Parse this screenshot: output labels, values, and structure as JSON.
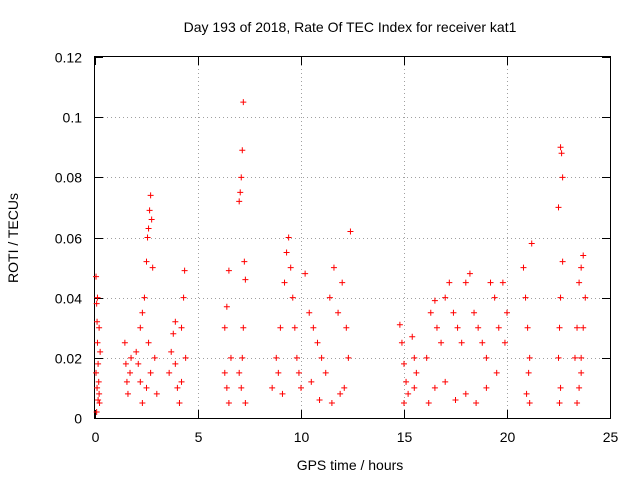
{
  "chart_data": {
    "type": "scatter",
    "title": "Day 193 of 2018, Rate Of TEC Index for receiver kat1",
    "xlabel": "GPS time / hours",
    "ylabel": "ROTI / TECUs",
    "xlim": [
      0,
      25
    ],
    "ylim": [
      0,
      0.12
    ],
    "xticks": [
      0,
      5,
      10,
      15,
      20,
      25
    ],
    "xtick_labels": [
      "0",
      "5",
      "10",
      "15",
      "20",
      "25"
    ],
    "yticks": [
      0,
      0.02,
      0.04,
      0.06,
      0.08,
      0.1,
      0.12
    ],
    "ytick_labels": [
      "0",
      "0.02",
      "0.04",
      "0.06",
      "0.08",
      "0.1",
      "0.12"
    ],
    "grid": true,
    "marker": "+",
    "color": "#ff0000",
    "series": [
      {
        "name": "ROTI",
        "points": [
          [
            0.05,
            0.047
          ],
          [
            0.08,
            0.038
          ],
          [
            0.1,
            0.032
          ],
          [
            0.12,
            0.025
          ],
          [
            0.15,
            0.018
          ],
          [
            0.18,
            0.012
          ],
          [
            0.2,
            0.008
          ],
          [
            0.22,
            0.005
          ],
          [
            0.05,
            0.015
          ],
          [
            0.1,
            0.01
          ],
          [
            0.15,
            0.006
          ],
          [
            0.2,
            0.03
          ],
          [
            0.25,
            0.022
          ],
          [
            0.12,
            0.04
          ],
          [
            0.08,
            0.002
          ],
          [
            1.45,
            0.025
          ],
          [
            1.5,
            0.018
          ],
          [
            1.55,
            0.012
          ],
          [
            1.6,
            0.008
          ],
          [
            1.7,
            0.015
          ],
          [
            1.75,
            0.02
          ],
          [
            2.0,
            0.022
          ],
          [
            2.1,
            0.018
          ],
          [
            2.2,
            0.03
          ],
          [
            2.3,
            0.035
          ],
          [
            2.4,
            0.04
          ],
          [
            2.5,
            0.052
          ],
          [
            2.55,
            0.06
          ],
          [
            2.6,
            0.063
          ],
          [
            2.65,
            0.069
          ],
          [
            2.7,
            0.074
          ],
          [
            2.75,
            0.066
          ],
          [
            2.8,
            0.05
          ],
          [
            2.5,
            0.01
          ],
          [
            2.3,
            0.005
          ],
          [
            2.7,
            0.015
          ],
          [
            2.9,
            0.02
          ],
          [
            3.0,
            0.008
          ],
          [
            2.2,
            0.012
          ],
          [
            2.6,
            0.025
          ],
          [
            3.6,
            0.015
          ],
          [
            3.7,
            0.022
          ],
          [
            3.8,
            0.028
          ],
          [
            3.9,
            0.032
          ],
          [
            4.0,
            0.01
          ],
          [
            4.1,
            0.005
          ],
          [
            4.2,
            0.03
          ],
          [
            4.3,
            0.04
          ],
          [
            4.35,
            0.049
          ],
          [
            4.4,
            0.02
          ],
          [
            4.2,
            0.012
          ],
          [
            3.9,
            0.018
          ],
          [
            6.3,
            0.03
          ],
          [
            6.4,
            0.037
          ],
          [
            6.5,
            0.049
          ],
          [
            6.6,
            0.02
          ],
          [
            6.4,
            0.01
          ],
          [
            6.5,
            0.005
          ],
          [
            6.3,
            0.015
          ],
          [
            7.0,
            0.072
          ],
          [
            7.05,
            0.075
          ],
          [
            7.1,
            0.08
          ],
          [
            7.15,
            0.089
          ],
          [
            7.2,
            0.105
          ],
          [
            7.25,
            0.052
          ],
          [
            7.3,
            0.046
          ],
          [
            7.2,
            0.03
          ],
          [
            7.15,
            0.02
          ],
          [
            7.1,
            0.01
          ],
          [
            7.3,
            0.005
          ],
          [
            7.0,
            0.015
          ],
          [
            8.6,
            0.01
          ],
          [
            8.8,
            0.02
          ],
          [
            9.0,
            0.03
          ],
          [
            9.2,
            0.045
          ],
          [
            9.3,
            0.055
          ],
          [
            9.4,
            0.06
          ],
          [
            9.5,
            0.05
          ],
          [
            9.6,
            0.04
          ],
          [
            9.7,
            0.03
          ],
          [
            9.8,
            0.02
          ],
          [
            9.9,
            0.015
          ],
          [
            10.0,
            0.01
          ],
          [
            10.2,
            0.048
          ],
          [
            10.4,
            0.035
          ],
          [
            10.6,
            0.03
          ],
          [
            10.8,
            0.025
          ],
          [
            11.0,
            0.02
          ],
          [
            11.2,
            0.015
          ],
          [
            11.4,
            0.04
          ],
          [
            11.6,
            0.05
          ],
          [
            11.8,
            0.035
          ],
          [
            12.0,
            0.045
          ],
          [
            12.2,
            0.03
          ],
          [
            12.4,
            0.062
          ],
          [
            12.3,
            0.02
          ],
          [
            12.1,
            0.01
          ],
          [
            11.9,
            0.008
          ],
          [
            11.5,
            0.005
          ],
          [
            10.9,
            0.006
          ],
          [
            10.5,
            0.012
          ],
          [
            9.1,
            0.008
          ],
          [
            8.9,
            0.015
          ],
          [
            14.8,
            0.031
          ],
          [
            14.9,
            0.025
          ],
          [
            15.0,
            0.018
          ],
          [
            15.1,
            0.012
          ],
          [
            15.2,
            0.008
          ],
          [
            15.0,
            0.005
          ],
          [
            15.4,
            0.027
          ],
          [
            15.5,
            0.02
          ],
          [
            15.6,
            0.015
          ],
          [
            15.5,
            0.01
          ],
          [
            16.1,
            0.02
          ],
          [
            16.3,
            0.035
          ],
          [
            16.5,
            0.039
          ],
          [
            16.6,
            0.03
          ],
          [
            16.8,
            0.025
          ],
          [
            17.0,
            0.04
          ],
          [
            17.2,
            0.045
          ],
          [
            17.4,
            0.035
          ],
          [
            17.6,
            0.03
          ],
          [
            17.8,
            0.025
          ],
          [
            18.0,
            0.045
          ],
          [
            18.2,
            0.048
          ],
          [
            18.4,
            0.035
          ],
          [
            18.6,
            0.03
          ],
          [
            18.8,
            0.025
          ],
          [
            19.0,
            0.02
          ],
          [
            19.2,
            0.045
          ],
          [
            19.4,
            0.04
          ],
          [
            19.6,
            0.03
          ],
          [
            19.8,
            0.045
          ],
          [
            20.0,
            0.035
          ],
          [
            19.9,
            0.025
          ],
          [
            19.5,
            0.015
          ],
          [
            19.0,
            0.01
          ],
          [
            18.5,
            0.005
          ],
          [
            18.0,
            0.008
          ],
          [
            17.5,
            0.006
          ],
          [
            17.0,
            0.012
          ],
          [
            16.5,
            0.01
          ],
          [
            16.2,
            0.005
          ],
          [
            20.8,
            0.05
          ],
          [
            20.9,
            0.04
          ],
          [
            21.0,
            0.03
          ],
          [
            21.1,
            0.02
          ],
          [
            21.2,
            0.058
          ],
          [
            21.05,
            0.015
          ],
          [
            20.95,
            0.008
          ],
          [
            21.1,
            0.005
          ],
          [
            22.5,
            0.07
          ],
          [
            22.6,
            0.09
          ],
          [
            22.65,
            0.088
          ],
          [
            22.7,
            0.052
          ],
          [
            22.6,
            0.04
          ],
          [
            22.55,
            0.03
          ],
          [
            22.5,
            0.02
          ],
          [
            22.6,
            0.01
          ],
          [
            22.55,
            0.005
          ],
          [
            22.7,
            0.08
          ],
          [
            23.3,
            0.02
          ],
          [
            23.4,
            0.03
          ],
          [
            23.5,
            0.045
          ],
          [
            23.6,
            0.05
          ],
          [
            23.7,
            0.054
          ],
          [
            23.8,
            0.04
          ],
          [
            23.7,
            0.03
          ],
          [
            23.6,
            0.02
          ],
          [
            23.5,
            0.01
          ],
          [
            23.4,
            0.005
          ],
          [
            23.6,
            0.015
          ]
        ]
      }
    ]
  }
}
